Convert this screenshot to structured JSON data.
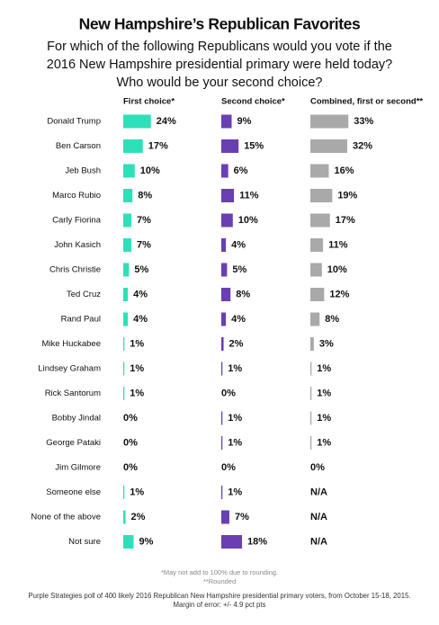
{
  "chart_data": {
    "type": "bar",
    "title": "New Hampshire’s Republican Favorites",
    "subtitle": [
      "For which of the following Republicans would you vote if the",
      "2016 New Hampshire presidential primary were held today?",
      "Who would be your second choice?"
    ],
    "categories": [
      "Donald Trump",
      "Ben Carson",
      "Jeb Bush",
      "Marco Rubio",
      "Carly Fiorina",
      "John Kasich",
      "Chris Christie",
      "Ted Cruz",
      "Rand Paul",
      "Mike Huckabee",
      "Lindsey Graham",
      "Rick Santorum",
      "Bobby Jindal",
      "George Pataki",
      "Jim Gilmore",
      "Someone else",
      "None of the above",
      "Not sure"
    ],
    "series": [
      {
        "name": "First choice*",
        "color": "#2ee0b9",
        "values": [
          24,
          17,
          10,
          8,
          7,
          7,
          5,
          4,
          4,
          1,
          1,
          1,
          0,
          0,
          0,
          1,
          2,
          9
        ],
        "value_labels": [
          "24%",
          "17%",
          "10%",
          "8%",
          "7%",
          "7%",
          "5%",
          "4%",
          "4%",
          "1%",
          "1%",
          "1%",
          "0%",
          "0%",
          "0%",
          "1%",
          "2%",
          "9%"
        ]
      },
      {
        "name": "Second choice*",
        "color": "#6a3fb2",
        "values": [
          9,
          15,
          6,
          11,
          10,
          4,
          5,
          8,
          4,
          2,
          1,
          0,
          1,
          1,
          0,
          1,
          7,
          18
        ],
        "value_labels": [
          "9%",
          "15%",
          "6%",
          "11%",
          "10%",
          "4%",
          "5%",
          "8%",
          "4%",
          "2%",
          "1%",
          "0%",
          "1%",
          "1%",
          "0%",
          "1%",
          "7%",
          "18%"
        ]
      },
      {
        "name": "Combined, first or second**",
        "color": "#a9a9a9",
        "values": [
          33,
          32,
          16,
          19,
          17,
          11,
          10,
          12,
          8,
          3,
          1,
          1,
          1,
          1,
          0,
          null,
          null,
          null
        ],
        "value_labels": [
          "33%",
          "32%",
          "16%",
          "19%",
          "17%",
          "11%",
          "10%",
          "12%",
          "8%",
          "3%",
          "1%",
          "1%",
          "1%",
          "1%",
          "0%",
          "N/A",
          "N/A",
          "N/A"
        ]
      }
    ],
    "notes": [
      "*May not add to 100% due to rounding.",
      "**Rounded"
    ],
    "source": [
      "Purple Strategies poll of 400 likely 2016 Republican New Hampshire presidential primary voters, from October 15-18, 2015.",
      "Margin of error: +/- 4.9 pct pts"
    ]
  }
}
